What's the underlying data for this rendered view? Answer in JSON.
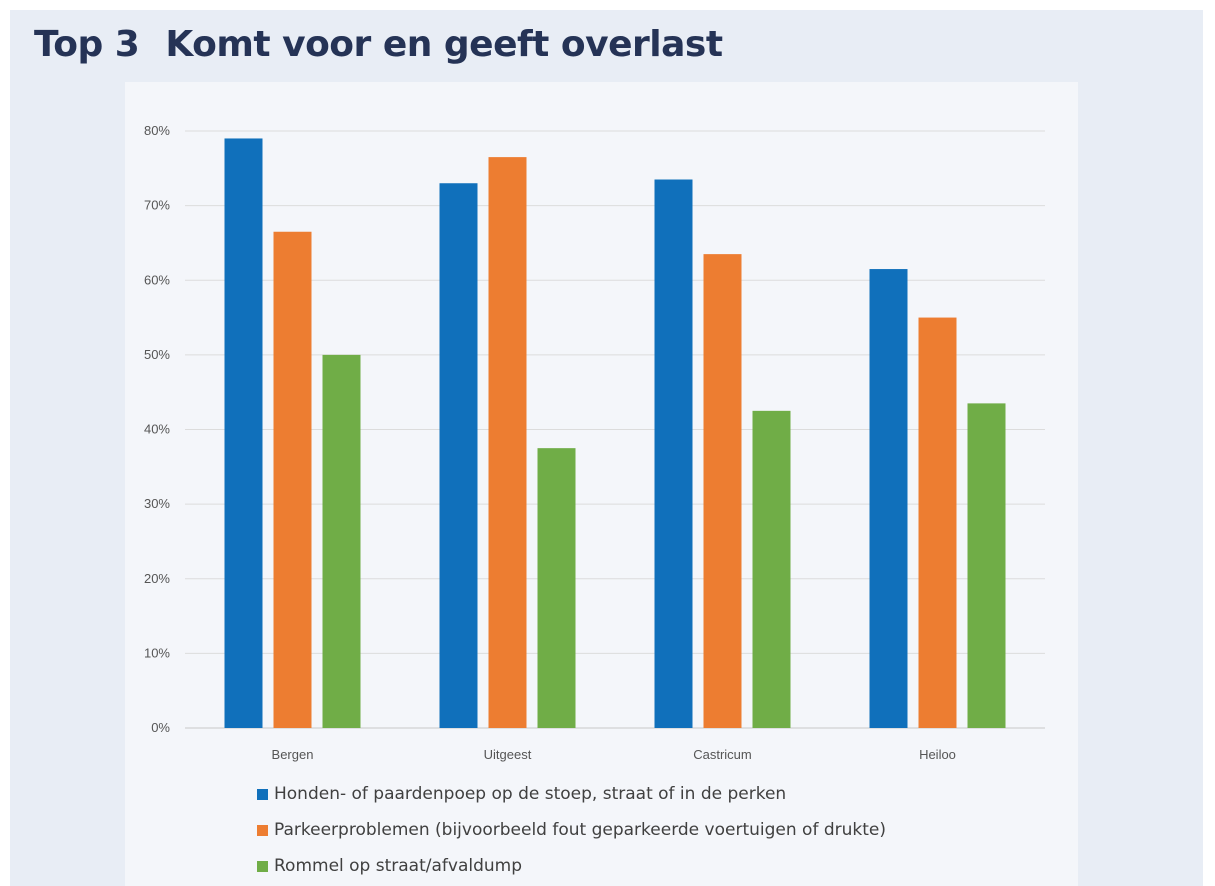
{
  "title": {
    "number": "Top 3",
    "text": "Komt voor en geeft overlast"
  },
  "chart_data": {
    "type": "bar",
    "categories": [
      "Bergen",
      "Uitgeest",
      "Castricum",
      "Heiloo"
    ],
    "series": [
      {
        "name": "Honden- of paardenpoep op de stoep, straat of in de perken",
        "color": "#1070bb",
        "values": [
          79,
          73,
          73.5,
          61.5
        ]
      },
      {
        "name": "Parkeerproblemen (bijvoorbeeld fout geparkeerde voertuigen of drukte)",
        "color": "#ed7d31",
        "values": [
          66.5,
          76.5,
          63.5,
          55
        ]
      },
      {
        "name": "Rommel op straat/afvaldump",
        "color": "#70ad47",
        "values": [
          50,
          37.5,
          42.5,
          43.5
        ]
      }
    ],
    "y_ticks": [
      "0%",
      "10%",
      "20%",
      "30%",
      "40%",
      "50%",
      "60%",
      "70%",
      "80%"
    ],
    "ylim": [
      0,
      80
    ],
    "grid": true,
    "legend_position": "bottom"
  }
}
